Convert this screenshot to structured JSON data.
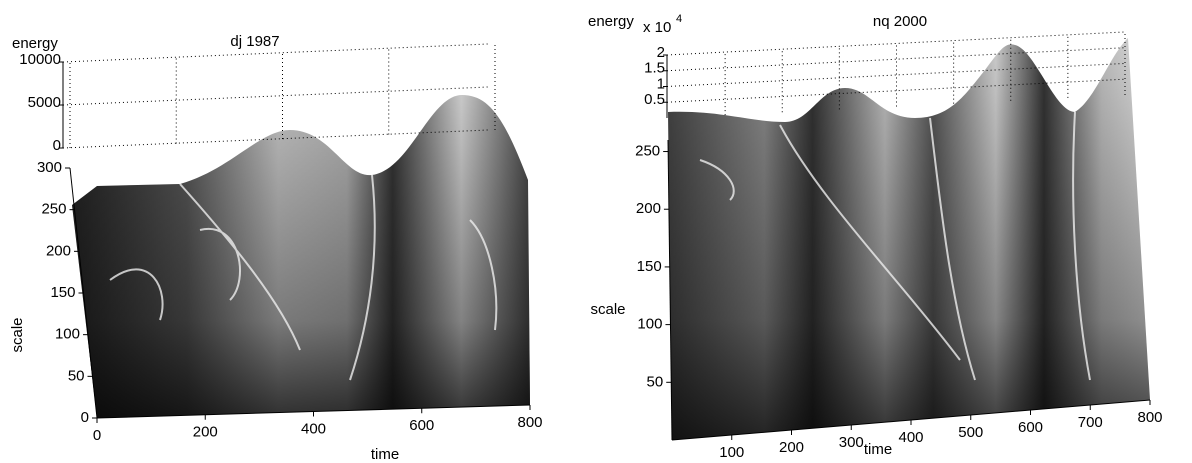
{
  "chart_data": [
    {
      "type": "surface",
      "title": "dj 1987",
      "xlabel": "time",
      "ylabel": "scale",
      "zlabel": "energy",
      "xlim": [
        0,
        800
      ],
      "xticks": [
        0,
        200,
        400,
        600,
        800
      ],
      "ylim": [
        0,
        300
      ],
      "yticks": [
        0,
        50,
        100,
        150,
        200,
        250,
        300
      ],
      "zlim": [
        0,
        10000
      ],
      "zticks": [
        0,
        5000,
        10000
      ],
      "grid": true
    },
    {
      "type": "surface",
      "title": "nq 2000",
      "xlabel": "time",
      "ylabel": "scale",
      "zlabel": "energy",
      "zscale": {
        "base": "x 10",
        "exponent": 4
      },
      "xlim": [
        0,
        800
      ],
      "xticks": [
        100,
        200,
        300,
        400,
        500,
        600,
        700,
        800
      ],
      "ylim": [
        0,
        260
      ],
      "yticks": [
        50,
        100,
        150,
        200,
        250
      ],
      "zlim": [
        0,
        2
      ],
      "zticks": [
        0.5,
        1,
        1.5,
        2
      ],
      "grid": true
    }
  ]
}
